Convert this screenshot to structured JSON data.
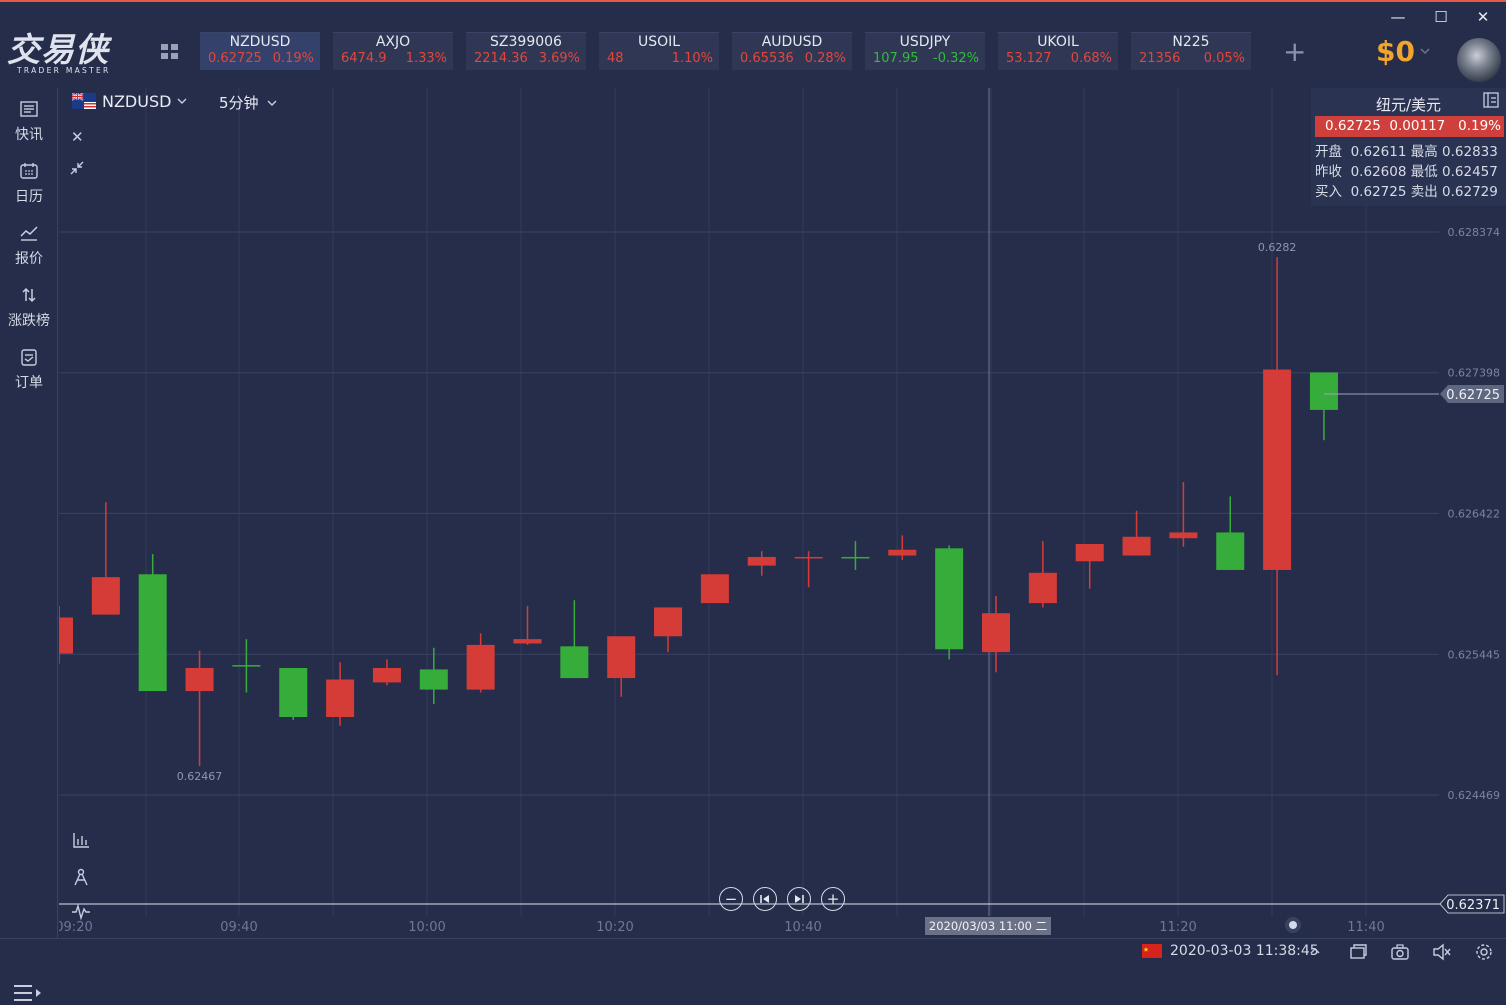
{
  "app": {
    "logo_cn": "交易侠",
    "logo_en": "TRADER MASTER",
    "balance": "$0"
  },
  "tickers": [
    {
      "name": "NZDUSD",
      "price": "0.62725",
      "change": "0.19%",
      "dir": "up"
    },
    {
      "name": "AXJO",
      "price": "6474.9",
      "change": "1.33%",
      "dir": "up"
    },
    {
      "name": "SZ399006",
      "price": "2214.36",
      "change": "3.69%",
      "dir": "up"
    },
    {
      "name": "USOIL",
      "price": "48",
      "change": "1.10%",
      "dir": "up"
    },
    {
      "name": "AUDUSD",
      "price": "0.65536",
      "change": "0.28%",
      "dir": "up"
    },
    {
      "name": "USDJPY",
      "price": "107.95",
      "change": "-0.32%",
      "dir": "down"
    },
    {
      "name": "UKOIL",
      "price": "53.127",
      "change": "0.68%",
      "dir": "up"
    },
    {
      "name": "N225",
      "price": "21356",
      "change": "0.05%",
      "dir": "up"
    }
  ],
  "nav": [
    {
      "label": "快讯",
      "icon": "news-icon"
    },
    {
      "label": "日历",
      "icon": "calendar-icon"
    },
    {
      "label": "报价",
      "icon": "quote-chart-icon"
    },
    {
      "label": "涨跌榜",
      "icon": "sort-arrows-icon"
    },
    {
      "label": "订单",
      "icon": "order-icon"
    }
  ],
  "chart_header": {
    "symbol": "NZDUSD",
    "timeframe": "5分钟"
  },
  "quote_panel": {
    "title": "纽元/美元",
    "price": "0.62725",
    "change": "0.00117",
    "pct": "0.19%",
    "open_label": "开盘",
    "open": "0.62611",
    "high_label": "最高",
    "high": "0.62833",
    "prev_label": "昨收",
    "prev": "0.62608",
    "low_label": "最低",
    "low": "0.62457",
    "bid_label": "买入",
    "bid": "0.62725",
    "ask_label": "卖出",
    "ask": "0.62729"
  },
  "status": {
    "datetime": "2020-03-03 11:38:45"
  },
  "colors": {
    "up": "#d63c37",
    "down": "#36ad3a",
    "background": "#262d4a",
    "accent": "#f0a52c"
  },
  "chart_data": {
    "type": "candlestick",
    "ticker": "NZDUSD",
    "interval": "5分钟",
    "ylim": [
      0.6235,
      0.6288
    ],
    "y_ticks": [
      0.628374,
      0.627398,
      0.626422,
      0.625445,
      0.624469
    ],
    "x_ticks": [
      "09:20",
      "09:40",
      "10:00",
      "10:20",
      "10:40",
      "11:20",
      "11:40"
    ],
    "current_price": 0.62725,
    "low_edge_label": 0.62371,
    "cursor_time_label": "2020/03/03 11:00 二",
    "annotations": [
      {
        "label": "0.62467",
        "value": 0.62467,
        "candle": 3
      },
      {
        "label": "0.6282",
        "value": 0.6282,
        "candle": 26
      }
    ],
    "candles": [
      {
        "o": 0.62545,
        "c": 0.6257,
        "h": 0.62578,
        "l": 0.62538,
        "color": "red"
      },
      {
        "o": 0.62572,
        "c": 0.62598,
        "h": 0.6265,
        "l": 0.62572,
        "color": "red"
      },
      {
        "o": 0.62519,
        "c": 0.626,
        "h": 0.62614,
        "l": 0.62519,
        "color": "green"
      },
      {
        "o": 0.62519,
        "c": 0.62535,
        "h": 0.62547,
        "l": 0.62467,
        "color": "red"
      },
      {
        "o": 0.62537,
        "c": 0.62537,
        "h": 0.62555,
        "l": 0.62518,
        "color": "green"
      },
      {
        "o": 0.62501,
        "c": 0.62535,
        "h": 0.62535,
        "l": 0.62499,
        "color": "green"
      },
      {
        "o": 0.62501,
        "c": 0.62527,
        "h": 0.62539,
        "l": 0.62495,
        "color": "red"
      },
      {
        "o": 0.62525,
        "c": 0.62535,
        "h": 0.62541,
        "l": 0.62523,
        "color": "red"
      },
      {
        "o": 0.6252,
        "c": 0.62534,
        "h": 0.62549,
        "l": 0.6251,
        "color": "green"
      },
      {
        "o": 0.6252,
        "c": 0.62551,
        "h": 0.62559,
        "l": 0.62518,
        "color": "red"
      },
      {
        "o": 0.62552,
        "c": 0.62555,
        "h": 0.62578,
        "l": 0.62551,
        "color": "red"
      },
      {
        "o": 0.62528,
        "c": 0.6255,
        "h": 0.62582,
        "l": 0.62528,
        "color": "green"
      },
      {
        "o": 0.62528,
        "c": 0.62557,
        "h": 0.62557,
        "l": 0.62515,
        "color": "red"
      },
      {
        "o": 0.62557,
        "c": 0.62577,
        "h": 0.62577,
        "l": 0.62546,
        "color": "red"
      },
      {
        "o": 0.6258,
        "c": 0.626,
        "h": 0.626,
        "l": 0.6258,
        "color": "red"
      },
      {
        "o": 0.62606,
        "c": 0.62612,
        "h": 0.62616,
        "l": 0.62599,
        "color": "red"
      },
      {
        "o": 0.62611,
        "c": 0.62612,
        "h": 0.62616,
        "l": 0.62591,
        "color": "red"
      },
      {
        "o": 0.62611,
        "c": 0.62612,
        "h": 0.62623,
        "l": 0.62603,
        "color": "green"
      },
      {
        "o": 0.62613,
        "c": 0.62617,
        "h": 0.62627,
        "l": 0.6261,
        "color": "red"
      },
      {
        "o": 0.62548,
        "c": 0.62618,
        "h": 0.6262,
        "l": 0.62541,
        "color": "green"
      },
      {
        "o": 0.62546,
        "c": 0.62573,
        "h": 0.62585,
        "l": 0.62532,
        "color": "red"
      },
      {
        "o": 0.6258,
        "c": 0.62601,
        "h": 0.62623,
        "l": 0.62577,
        "color": "red"
      },
      {
        "o": 0.62609,
        "c": 0.62621,
        "h": 0.62621,
        "l": 0.6259,
        "color": "red"
      },
      {
        "o": 0.62613,
        "c": 0.62626,
        "h": 0.62644,
        "l": 0.62613,
        "color": "red"
      },
      {
        "o": 0.62625,
        "c": 0.62629,
        "h": 0.62664,
        "l": 0.62619,
        "color": "red"
      },
      {
        "o": 0.62603,
        "c": 0.62629,
        "h": 0.62654,
        "l": 0.62603,
        "color": "green"
      },
      {
        "o": 0.62603,
        "c": 0.62742,
        "h": 0.6282,
        "l": 0.6253,
        "color": "red"
      },
      {
        "o": 0.62714,
        "c": 0.6274,
        "h": 0.6274,
        "l": 0.62693,
        "color": "green"
      }
    ]
  }
}
